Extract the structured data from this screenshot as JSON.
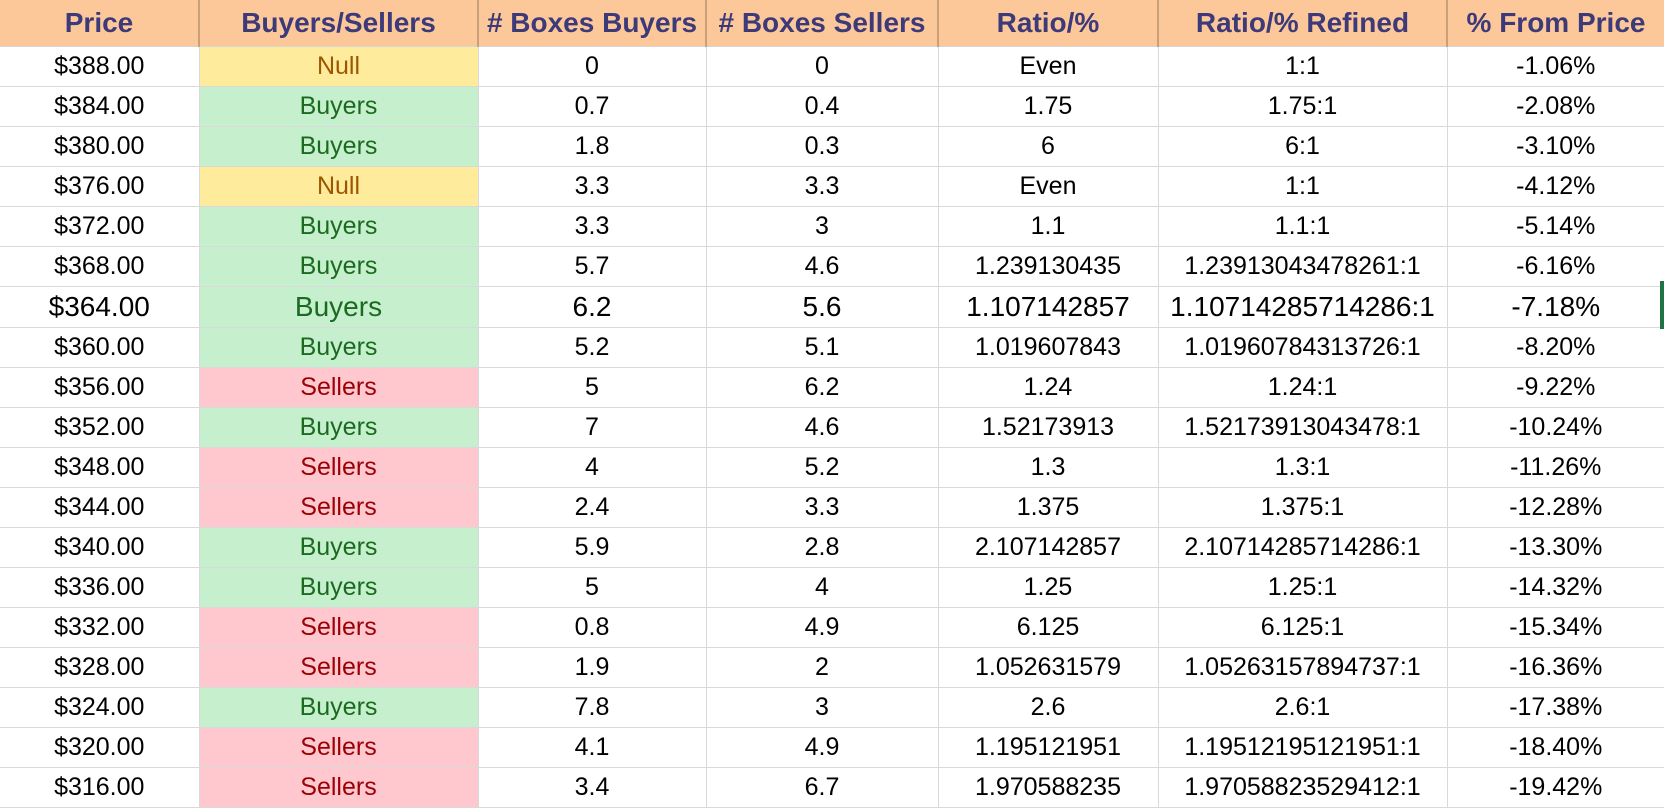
{
  "headers": [
    "Price",
    "Buyers/Sellers",
    "# Boxes Buyers",
    "# Boxes Sellers",
    "Ratio/%",
    "Ratio/% Refined",
    "% From Price"
  ],
  "rows": [
    {
      "price": "$388.00",
      "side": "Null",
      "boxes_buyers": "0",
      "boxes_sellers": "0",
      "ratio": "Even",
      "ratio_refined": "1:1",
      "from_price": "-1.06%"
    },
    {
      "price": "$384.00",
      "side": "Buyers",
      "boxes_buyers": "0.7",
      "boxes_sellers": "0.4",
      "ratio": "1.75",
      "ratio_refined": "1.75:1",
      "from_price": "-2.08%"
    },
    {
      "price": "$380.00",
      "side": "Buyers",
      "boxes_buyers": "1.8",
      "boxes_sellers": "0.3",
      "ratio": "6",
      "ratio_refined": "6:1",
      "from_price": "-3.10%"
    },
    {
      "price": "$376.00",
      "side": "Null",
      "boxes_buyers": "3.3",
      "boxes_sellers": "3.3",
      "ratio": "Even",
      "ratio_refined": "1:1",
      "from_price": "-4.12%"
    },
    {
      "price": "$372.00",
      "side": "Buyers",
      "boxes_buyers": "3.3",
      "boxes_sellers": "3",
      "ratio": "1.1",
      "ratio_refined": "1.1:1",
      "from_price": "-5.14%"
    },
    {
      "price": "$368.00",
      "side": "Buyers",
      "boxes_buyers": "5.7",
      "boxes_sellers": "4.6",
      "ratio": "1.239130435",
      "ratio_refined": "1.23913043478261:1",
      "from_price": "-6.16%"
    },
    {
      "price": "$364.00",
      "side": "Buyers",
      "boxes_buyers": "6.2",
      "boxes_sellers": "5.6",
      "ratio": "1.107142857",
      "ratio_refined": "1.10714285714286:1",
      "from_price": "-7.18%"
    },
    {
      "price": "$360.00",
      "side": "Buyers",
      "boxes_buyers": "5.2",
      "boxes_sellers": "5.1",
      "ratio": "1.019607843",
      "ratio_refined": "1.01960784313726:1",
      "from_price": "-8.20%"
    },
    {
      "price": "$356.00",
      "side": "Sellers",
      "boxes_buyers": "5",
      "boxes_sellers": "6.2",
      "ratio": "1.24",
      "ratio_refined": "1.24:1",
      "from_price": "-9.22%"
    },
    {
      "price": "$352.00",
      "side": "Buyers",
      "boxes_buyers": "7",
      "boxes_sellers": "4.6",
      "ratio": "1.52173913",
      "ratio_refined": "1.52173913043478:1",
      "from_price": "-10.24%"
    },
    {
      "price": "$348.00",
      "side": "Sellers",
      "boxes_buyers": "4",
      "boxes_sellers": "5.2",
      "ratio": "1.3",
      "ratio_refined": "1.3:1",
      "from_price": "-11.26%"
    },
    {
      "price": "$344.00",
      "side": "Sellers",
      "boxes_buyers": "2.4",
      "boxes_sellers": "3.3",
      "ratio": "1.375",
      "ratio_refined": "1.375:1",
      "from_price": "-12.28%"
    },
    {
      "price": "$340.00",
      "side": "Buyers",
      "boxes_buyers": "5.9",
      "boxes_sellers": "2.8",
      "ratio": "2.107142857",
      "ratio_refined": "2.10714285714286:1",
      "from_price": "-13.30%"
    },
    {
      "price": "$336.00",
      "side": "Buyers",
      "boxes_buyers": "5",
      "boxes_sellers": "4",
      "ratio": "1.25",
      "ratio_refined": "1.25:1",
      "from_price": "-14.32%"
    },
    {
      "price": "$332.00",
      "side": "Sellers",
      "boxes_buyers": "0.8",
      "boxes_sellers": "4.9",
      "ratio": "6.125",
      "ratio_refined": "6.125:1",
      "from_price": "-15.34%"
    },
    {
      "price": "$328.00",
      "side": "Sellers",
      "boxes_buyers": "1.9",
      "boxes_sellers": "2",
      "ratio": "1.052631579",
      "ratio_refined": "1.05263157894737:1",
      "from_price": "-16.36%"
    },
    {
      "price": "$324.00",
      "side": "Buyers",
      "boxes_buyers": "7.8",
      "boxes_sellers": "3",
      "ratio": "2.6",
      "ratio_refined": "2.6:1",
      "from_price": "-17.38%"
    },
    {
      "price": "$320.00",
      "side": "Sellers",
      "boxes_buyers": "4.1",
      "boxes_sellers": "4.9",
      "ratio": "1.195121951",
      "ratio_refined": "1.19512195121951:1",
      "from_price": "-18.40%"
    },
    {
      "price": "$316.00",
      "side": "Sellers",
      "boxes_buyers": "3.4",
      "boxes_sellers": "6.7",
      "ratio": "1.970588235",
      "ratio_refined": "1.97058823529412:1",
      "from_price": "-19.42%"
    }
  ],
  "colors": {
    "header_bg": "#fcc89a",
    "header_text": "#3d3a7a",
    "buyers_bg": "#c6efce",
    "buyers_text": "#1a6b1f",
    "sellers_bg": "#ffc7ce",
    "sellers_text": "#9c0006",
    "null_bg": "#ffeb9c",
    "null_text": "#9c5700"
  }
}
